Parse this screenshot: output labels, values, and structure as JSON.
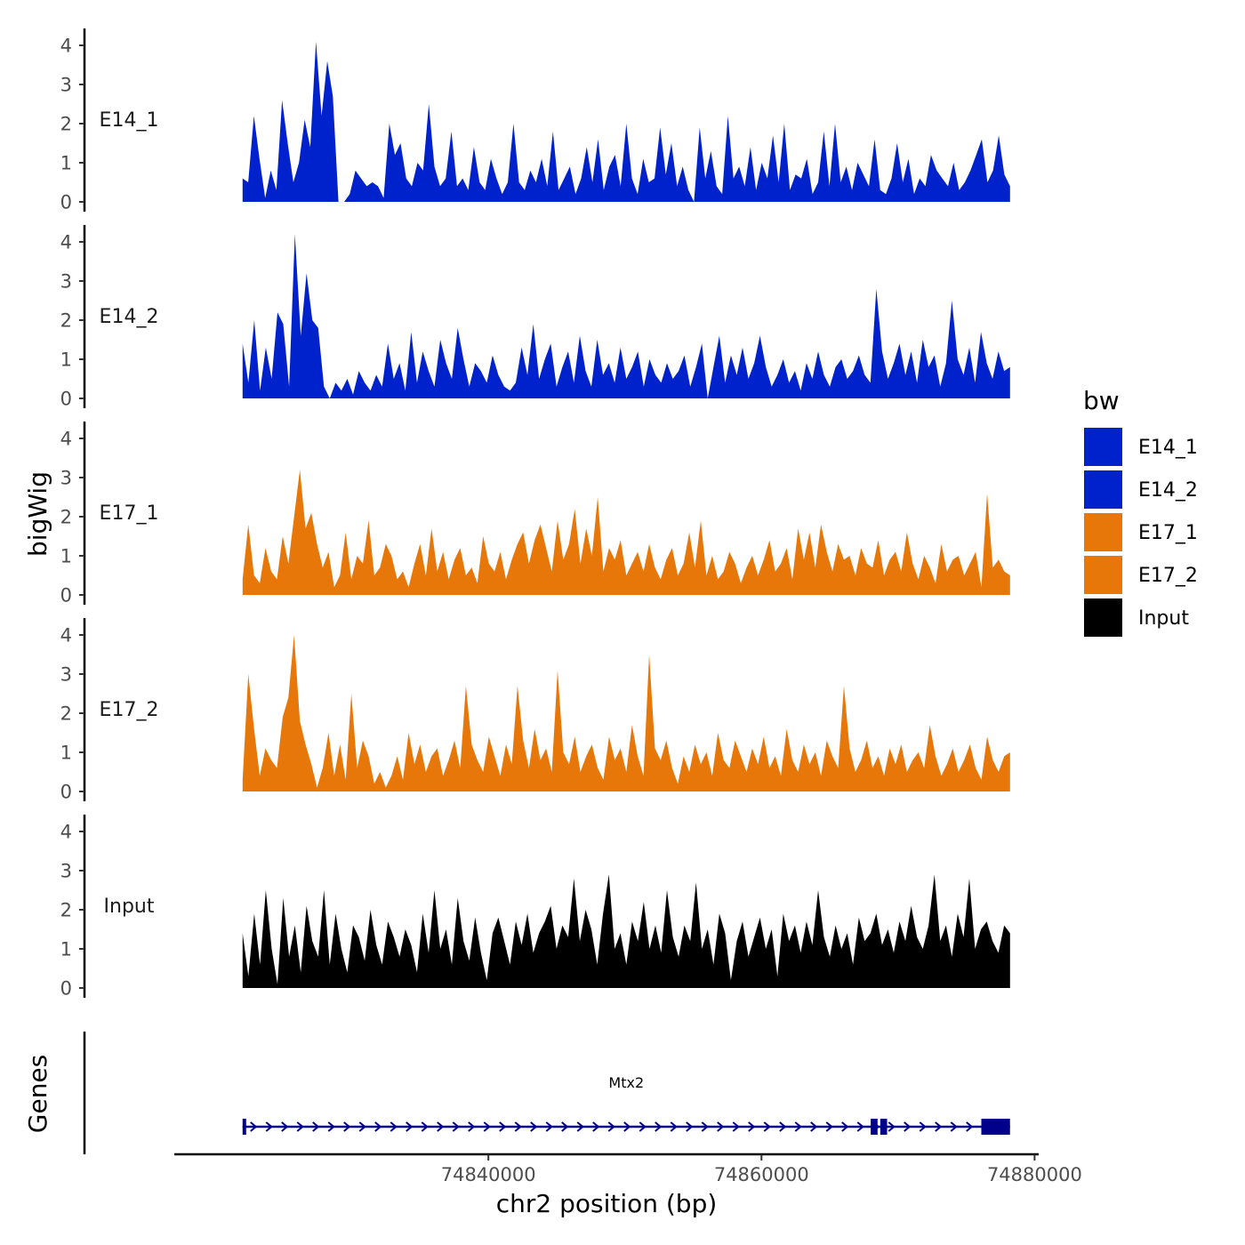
{
  "chart_data": {
    "type": "area",
    "chromosome": "chr2",
    "x_range": [
      74822000,
      74878200
    ],
    "x_axis": {
      "label": "chr2 position (bp)",
      "ticks": [
        74840000,
        74860000,
        74880000
      ],
      "tick_labels": [
        "74840000",
        "74860000",
        "74880000"
      ],
      "lim": [
        74817000,
        74880300
      ]
    },
    "y_axis": {
      "label": "bigWig",
      "ticks": [
        0,
        1,
        2,
        3,
        4
      ],
      "tick_labels": [
        "0",
        "1",
        "2",
        "3",
        "4"
      ],
      "ylim": [
        0,
        4.3
      ]
    },
    "legend": {
      "title": "bw",
      "position": "right",
      "entries": [
        {
          "name": "E14_1",
          "color": "#0022cc"
        },
        {
          "name": "E14_2",
          "color": "#0022cc"
        },
        {
          "name": "E17_1",
          "color": "#e8770a"
        },
        {
          "name": "E17_2",
          "color": "#e8770a"
        },
        {
          "name": "Input",
          "color": "#000000"
        }
      ]
    },
    "series": [
      {
        "name": "E14_1",
        "color": "#0022cc",
        "values": [
          0.6,
          0.5,
          2.2,
          1.1,
          0.1,
          0.8,
          0.3,
          2.6,
          1.5,
          0.5,
          1.0,
          2.1,
          1.4,
          4.1,
          2.2,
          3.6,
          2.7,
          0.0,
          0.0,
          0.2,
          0.8,
          0.6,
          0.4,
          0.5,
          0.4,
          0.1,
          2.0,
          1.2,
          1.5,
          0.6,
          0.4,
          1.0,
          0.8,
          2.5,
          0.9,
          0.4,
          0.6,
          1.8,
          0.4,
          0.6,
          0.3,
          1.4,
          0.5,
          0.3,
          1.1,
          0.6,
          0.2,
          0.5,
          2.0,
          0.5,
          0.3,
          0.8,
          0.5,
          1.1,
          0.4,
          1.8,
          0.3,
          0.6,
          0.9,
          0.2,
          0.6,
          1.4,
          0.5,
          1.6,
          0.3,
          0.9,
          1.2,
          0.4,
          2.0,
          0.6,
          0.2,
          1.1,
          0.5,
          0.6,
          1.9,
          0.7,
          1.5,
          0.4,
          0.9,
          0.3,
          0.0,
          1.9,
          0.6,
          1.3,
          0.4,
          0.2,
          2.2,
          0.6,
          0.9,
          0.4,
          1.4,
          0.3,
          1.0,
          0.6,
          1.7,
          0.5,
          2.0,
          0.3,
          0.7,
          0.6,
          1.1,
          0.2,
          0.5,
          1.8,
          0.4,
          2.0,
          0.5,
          0.9,
          0.3,
          1.0,
          0.7,
          0.4,
          1.6,
          0.3,
          0.2,
          0.6,
          1.5,
          0.5,
          1.1,
          0.2,
          0.6,
          0.4,
          1.2,
          0.8,
          0.6,
          0.4,
          1.0,
          0.3,
          0.5,
          0.8,
          1.2,
          1.6,
          0.5,
          0.8,
          1.7,
          0.7,
          0.4
        ]
      },
      {
        "name": "E14_2",
        "color": "#0022cc",
        "values": [
          1.4,
          0.4,
          2.0,
          0.2,
          1.3,
          0.5,
          2.2,
          1.9,
          0.3,
          4.2,
          1.6,
          3.2,
          2.0,
          1.8,
          0.3,
          0.0,
          0.4,
          0.2,
          0.5,
          0.1,
          0.7,
          0.4,
          0.2,
          0.6,
          0.3,
          1.4,
          0.5,
          0.9,
          0.2,
          1.7,
          0.4,
          1.2,
          0.7,
          0.3,
          1.5,
          0.9,
          0.5,
          1.8,
          1.0,
          0.3,
          0.9,
          0.7,
          0.4,
          1.1,
          0.6,
          0.3,
          0.2,
          0.4,
          1.3,
          0.6,
          1.9,
          0.5,
          1.0,
          1.4,
          0.3,
          0.8,
          1.2,
          0.4,
          1.6,
          0.7,
          0.3,
          1.5,
          0.6,
          0.9,
          0.4,
          1.3,
          0.5,
          0.8,
          1.2,
          0.3,
          1.0,
          0.6,
          0.4,
          0.9,
          0.5,
          0.7,
          1.1,
          0.3,
          0.8,
          1.4,
          0.0,
          0.8,
          1.6,
          0.4,
          1.1,
          0.6,
          1.3,
          0.5,
          0.9,
          1.6,
          0.8,
          0.3,
          0.6,
          1.0,
          0.4,
          0.7,
          0.2,
          0.9,
          0.5,
          1.2,
          0.6,
          0.3,
          0.8,
          1.0,
          0.5,
          0.7,
          1.1,
          0.6,
          0.4,
          2.8,
          1.2,
          0.5,
          0.9,
          1.4,
          0.6,
          1.2,
          0.4,
          1.5,
          0.8,
          1.1,
          0.3,
          0.9,
          2.5,
          1.0,
          0.6,
          1.3,
          0.4,
          1.7,
          0.9,
          0.5,
          1.2,
          0.7,
          0.8
        ]
      },
      {
        "name": "E17_1",
        "color": "#e8770a",
        "values": [
          0.4,
          1.8,
          0.5,
          0.3,
          1.2,
          0.6,
          0.4,
          1.5,
          0.8,
          2.0,
          3.2,
          1.7,
          2.1,
          1.3,
          0.7,
          1.1,
          0.2,
          0.5,
          1.6,
          0.4,
          1.0,
          0.8,
          1.9,
          0.5,
          0.7,
          1.3,
          1.0,
          0.4,
          0.6,
          0.2,
          0.8,
          1.3,
          0.5,
          1.7,
          0.6,
          1.1,
          0.4,
          0.9,
          1.2,
          0.5,
          0.7,
          0.3,
          1.5,
          0.8,
          0.6,
          1.1,
          0.4,
          0.9,
          1.3,
          1.6,
          0.8,
          1.4,
          1.8,
          1.2,
          0.6,
          1.9,
          0.9,
          1.3,
          2.2,
          0.8,
          1.7,
          1.0,
          2.5,
          0.6,
          1.2,
          0.9,
          1.4,
          0.5,
          0.8,
          1.1,
          0.6,
          1.3,
          0.7,
          0.4,
          0.9,
          1.2,
          0.5,
          0.8,
          1.6,
          0.7,
          1.9,
          0.5,
          1.0,
          0.4,
          0.6,
          1.1,
          0.8,
          0.3,
          0.7,
          1.0,
          0.5,
          0.9,
          1.4,
          0.6,
          0.8,
          1.2,
          0.4,
          1.7,
          0.9,
          1.6,
          0.7,
          1.8,
          1.1,
          0.6,
          1.3,
          0.9,
          1.0,
          0.5,
          1.2,
          0.8,
          0.7,
          1.4,
          0.5,
          0.9,
          1.1,
          0.6,
          1.6,
          0.8,
          0.4,
          1.0,
          0.7,
          0.3,
          1.3,
          0.6,
          0.9,
          1.0,
          0.5,
          0.8,
          1.1,
          0.2,
          2.6,
          0.7,
          0.9,
          0.6,
          0.5
        ]
      },
      {
        "name": "E17_2",
        "color": "#e8770a",
        "values": [
          0.3,
          3.0,
          1.6,
          0.4,
          1.1,
          0.8,
          0.6,
          1.9,
          2.4,
          4.0,
          1.8,
          1.2,
          0.7,
          0.1,
          0.6,
          1.5,
          0.4,
          1.2,
          0.3,
          2.5,
          0.6,
          1.3,
          0.9,
          0.2,
          0.5,
          0.1,
          0.4,
          0.9,
          0.3,
          1.5,
          0.7,
          1.2,
          0.5,
          0.9,
          1.1,
          0.4,
          0.8,
          1.3,
          0.6,
          2.7,
          1.2,
          0.8,
          0.5,
          1.4,
          0.9,
          0.4,
          1.2,
          0.7,
          2.7,
          1.3,
          0.6,
          1.6,
          0.8,
          1.1,
          0.5,
          3.1,
          1.0,
          0.7,
          1.4,
          0.5,
          0.9,
          1.2,
          0.6,
          0.3,
          1.4,
          0.8,
          1.1,
          0.5,
          1.7,
          0.9,
          0.4,
          3.5,
          1.1,
          0.8,
          1.3,
          0.6,
          0.2,
          0.9,
          0.5,
          1.2,
          0.7,
          1.0,
          0.4,
          1.5,
          0.8,
          0.6,
          1.3,
          0.9,
          0.5,
          1.1,
          0.7,
          1.4,
          0.6,
          0.9,
          0.4,
          1.6,
          0.8,
          0.5,
          1.2,
          0.7,
          1.0,
          0.4,
          1.3,
          0.9,
          0.6,
          2.7,
          1.1,
          0.5,
          0.8,
          1.3,
          0.6,
          0.9,
          0.4,
          1.1,
          0.7,
          1.2,
          0.5,
          0.8,
          1.0,
          0.6,
          1.7,
          0.9,
          0.4,
          0.7,
          1.1,
          0.5,
          0.8,
          1.2,
          0.6,
          0.3,
          1.4,
          0.8,
          0.5,
          0.9,
          1.0
        ]
      },
      {
        "name": "Input",
        "color": "#000000",
        "values": [
          1.4,
          0.3,
          1.9,
          0.6,
          2.5,
          1.0,
          0.1,
          2.3,
          0.8,
          1.6,
          0.4,
          2.1,
          1.2,
          0.8,
          2.5,
          0.6,
          1.9,
          1.0,
          0.4,
          1.6,
          1.3,
          0.7,
          2.0,
          1.1,
          0.6,
          1.7,
          1.3,
          0.8,
          1.5,
          1.1,
          0.4,
          1.9,
          0.9,
          2.5,
          1.0,
          1.5,
          0.6,
          2.3,
          1.2,
          0.7,
          1.8,
          0.9,
          0.2,
          1.4,
          1.8,
          1.2,
          0.6,
          1.7,
          1.1,
          1.9,
          0.9,
          1.4,
          1.7,
          2.1,
          1.0,
          1.6,
          1.3,
          2.8,
          1.2,
          2.0,
          1.5,
          0.6,
          1.9,
          2.9,
          1.0,
          1.4,
          0.6,
          1.7,
          1.2,
          2.2,
          1.0,
          1.6,
          0.9,
          2.5,
          1.3,
          0.8,
          1.6,
          1.2,
          2.7,
          1.0,
          1.5,
          0.6,
          1.9,
          1.4,
          0.2,
          1.2,
          1.7,
          0.8,
          1.3,
          1.8,
          1.0,
          1.5,
          0.3,
          1.9,
          1.2,
          1.6,
          0.9,
          1.7,
          1.1,
          2.5,
          1.3,
          0.8,
          1.6,
          1.0,
          1.4,
          0.6,
          1.8,
          1.2,
          1.4,
          1.9,
          1.1,
          1.5,
          0.9,
          1.7,
          1.2,
          2.1,
          1.3,
          1.0,
          1.6,
          2.9,
          1.2,
          1.6,
          0.8,
          1.9,
          1.3,
          2.8,
          1.0,
          1.5,
          1.7,
          1.2,
          0.9,
          1.6,
          1.4
        ]
      }
    ],
    "gene_track": {
      "label": "Genes",
      "genes": [
        {
          "name": "Mtx2",
          "strand": "+",
          "start": 74822000,
          "end": 74878200,
          "exons": [
            {
              "start": 74822000,
              "end": 74822200
            },
            {
              "start": 74868000,
              "end": 74868500
            },
            {
              "start": 74868700,
              "end": 74869200
            },
            {
              "start": 74876100,
              "end": 74878200
            }
          ],
          "color": "#00008b"
        }
      ]
    }
  }
}
